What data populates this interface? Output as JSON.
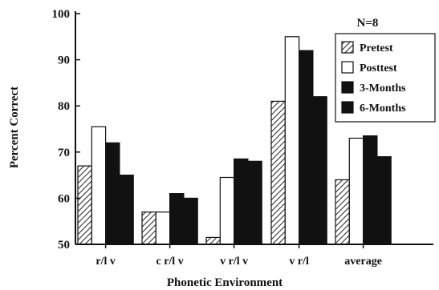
{
  "chart_data": {
    "type": "bar",
    "annotation": "N=8",
    "xlabel": "Phonetic Environment",
    "ylabel": "Percent Correct",
    "ylim": [
      50,
      100
    ],
    "yticks": [
      50,
      60,
      70,
      80,
      90,
      100
    ],
    "categories": [
      "r/l v",
      "c r/l v",
      "v r/l v",
      "v r/l",
      "average"
    ],
    "series": [
      {
        "name": "Pretest",
        "values": [
          67,
          57,
          51.5,
          81,
          64
        ],
        "fill": "hatch"
      },
      {
        "name": "Posttest",
        "values": [
          75.5,
          57,
          64.5,
          95,
          73
        ],
        "fill": "#ffffff"
      },
      {
        "name": "3-Months",
        "values": [
          72,
          61,
          68.5,
          92,
          73.5
        ],
        "fill": "#111111"
      },
      {
        "name": "6-Months",
        "values": [
          65,
          60,
          68,
          82,
          69
        ],
        "fill": "#111111"
      }
    ],
    "grid": false,
    "legend_position": "top-right"
  }
}
